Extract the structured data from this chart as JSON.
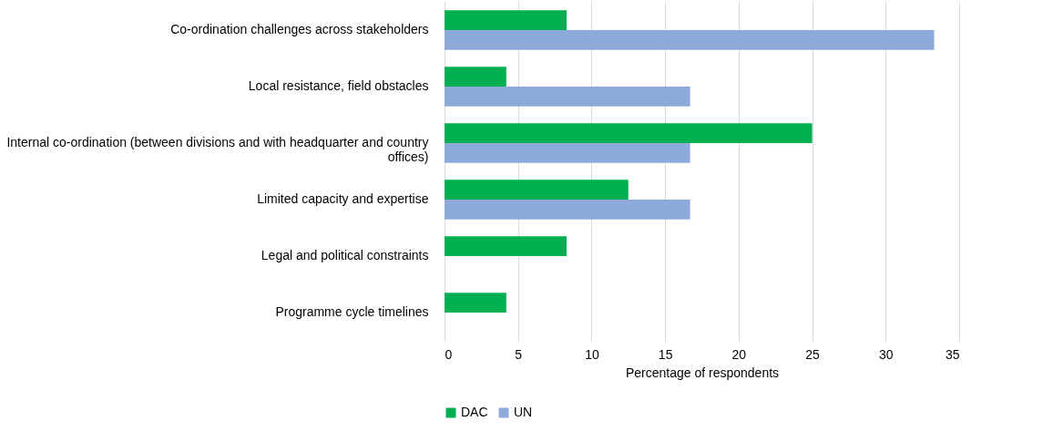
{
  "chart_data": {
    "type": "bar",
    "orientation": "horizontal",
    "xlabel": "Percentage of respondents",
    "categories": [
      "Co-ordination challenges across stakeholders",
      "Local resistance, field obstacles",
      "Internal co-ordination (between divisions and with headquarter and country offices)",
      "Limited capacity and expertise",
      "Legal and political constraints",
      "Programme cycle timelines"
    ],
    "series": [
      {
        "name": "DAC",
        "color": "#00b050",
        "values": [
          8.3,
          4.2,
          25,
          12.5,
          8.3,
          4.2
        ]
      },
      {
        "name": "UN",
        "color": "#8eaadb",
        "values": [
          33.3,
          16.7,
          16.7,
          16.7,
          null,
          null
        ]
      }
    ],
    "xlim": [
      0,
      35
    ],
    "xticks": [
      0,
      5,
      10,
      15,
      20,
      25,
      30,
      35
    ],
    "grid": "x",
    "legend": "bottom"
  }
}
